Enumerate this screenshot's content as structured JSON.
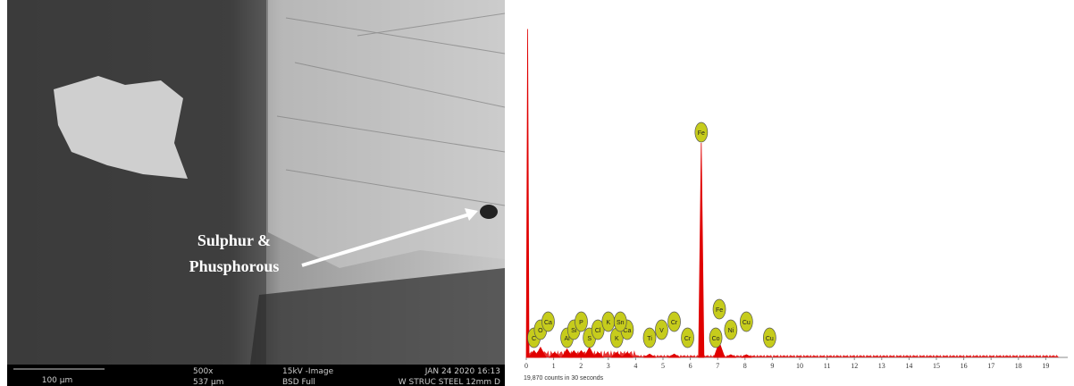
{
  "micrograph": {
    "annotation": [
      "Sulphur &",
      "Phusphorous"
    ],
    "info_bar": {
      "scale": "100 µm",
      "magnification": "500x",
      "field_width": "537 µm",
      "mode": "15kV -Image",
      "detector": "BSD Full",
      "date": "JAN 24 2020 16:13",
      "sample": "W STRUC STEEL 12mm D"
    }
  },
  "chart_data": {
    "type": "spectrum",
    "color": "#e00000",
    "xlim": [
      0,
      19.8
    ],
    "xticks": [
      0,
      1,
      2,
      3,
      4,
      5,
      6,
      7,
      8,
      9,
      10,
      11,
      12,
      13,
      14,
      15,
      16,
      17,
      18,
      19
    ],
    "ylim": [
      0,
      100
    ],
    "x": [
      0.05,
      0.28,
      0.52,
      1.04,
      1.49,
      1.74,
      2.01,
      2.31,
      2.62,
      3.31,
      3.69,
      4.51,
      5.41,
      6.4,
      7.06,
      7.48,
      8.05
    ],
    "values": [
      98,
      2,
      3,
      1.5,
      2.5,
      2,
      2,
      3,
      1.5,
      1.5,
      1.5,
      1,
      1,
      64,
      4.5,
      0.8,
      0.8
    ],
    "elements": [
      {
        "label": "C",
        "energy": 0.28
      },
      {
        "label": "O",
        "energy": 0.52
      },
      {
        "label": "Ca",
        "energy": 0.8
      },
      {
        "label": "Al",
        "energy": 1.49
      },
      {
        "label": "Si",
        "energy": 1.74
      },
      {
        "label": "P",
        "energy": 2.01
      },
      {
        "label": "S",
        "energy": 2.31
      },
      {
        "label": "Cl",
        "energy": 2.62
      },
      {
        "label": "K",
        "energy": 3.0
      },
      {
        "label": "K",
        "energy": 3.31
      },
      {
        "label": "Ca",
        "energy": 3.69
      },
      {
        "label": "Sn",
        "energy": 3.44
      },
      {
        "label": "Ti",
        "energy": 4.51
      },
      {
        "label": "V",
        "energy": 4.95
      },
      {
        "label": "Cr",
        "energy": 5.41
      },
      {
        "label": "Cr",
        "energy": 5.9
      },
      {
        "label": "Fe",
        "energy": 6.4
      },
      {
        "label": "Fe",
        "energy": 7.06
      },
      {
        "label": "Co",
        "energy": 6.93
      },
      {
        "label": "Ni",
        "energy": 7.48
      },
      {
        "label": "Cu",
        "energy": 8.05
      },
      {
        "label": "Cu",
        "energy": 8.9
      }
    ],
    "footer": "19,870 counts in 30 seconds"
  }
}
